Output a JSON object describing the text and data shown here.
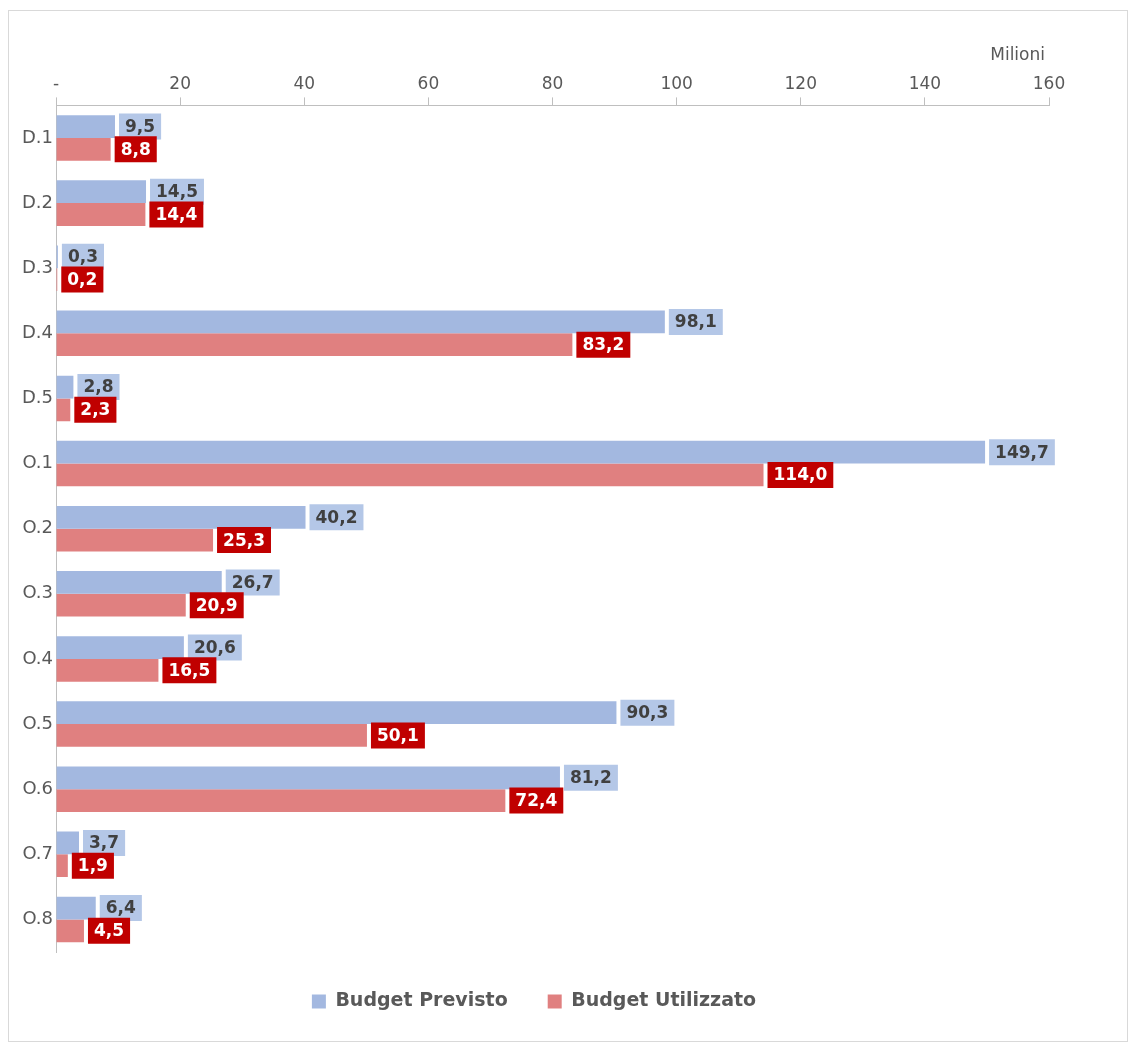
{
  "chart_data": {
    "type": "bar",
    "orientation": "horizontal",
    "xlabel": "Milioni",
    "categories": [
      "D.1",
      "D.2",
      "D.3",
      "D.4",
      "D.5",
      "O.1",
      "O.2",
      "O.3",
      "O.4",
      "O.5",
      "O.6",
      "O.7",
      "O.8"
    ],
    "series": [
      {
        "name": "Budget Previsto",
        "color": "#a3b8e0",
        "values": [
          9.5,
          14.5,
          0.3,
          98.1,
          2.8,
          149.7,
          40.2,
          26.7,
          20.6,
          90.3,
          81.2,
          3.7,
          6.4
        ],
        "value_labels": [
          "9,5",
          "14,5",
          "0,3",
          "98,1",
          "2,8",
          "149,7",
          "40,2",
          "26,7",
          "20,6",
          "90,3",
          "81,2",
          "3,7",
          "6,4"
        ]
      },
      {
        "name": "Budget Utilizzato",
        "color": "#e08080",
        "values": [
          8.8,
          14.4,
          0.2,
          83.2,
          2.3,
          114.0,
          25.3,
          20.9,
          16.5,
          50.1,
          72.4,
          1.9,
          4.5
        ],
        "value_labels": [
          "8,8",
          "14,4",
          "0,2",
          "83,2",
          "2,3",
          "114,0",
          "25,3",
          "20,9",
          "16,5",
          "50,1",
          "72,4",
          "1,9",
          "4,5"
        ]
      }
    ],
    "xlim": [
      0,
      160
    ],
    "xticks": [
      {
        "value": 0,
        "label": "-"
      },
      20,
      40,
      60,
      80,
      100,
      120,
      140,
      160
    ],
    "grid": false,
    "legend": "bottom"
  }
}
